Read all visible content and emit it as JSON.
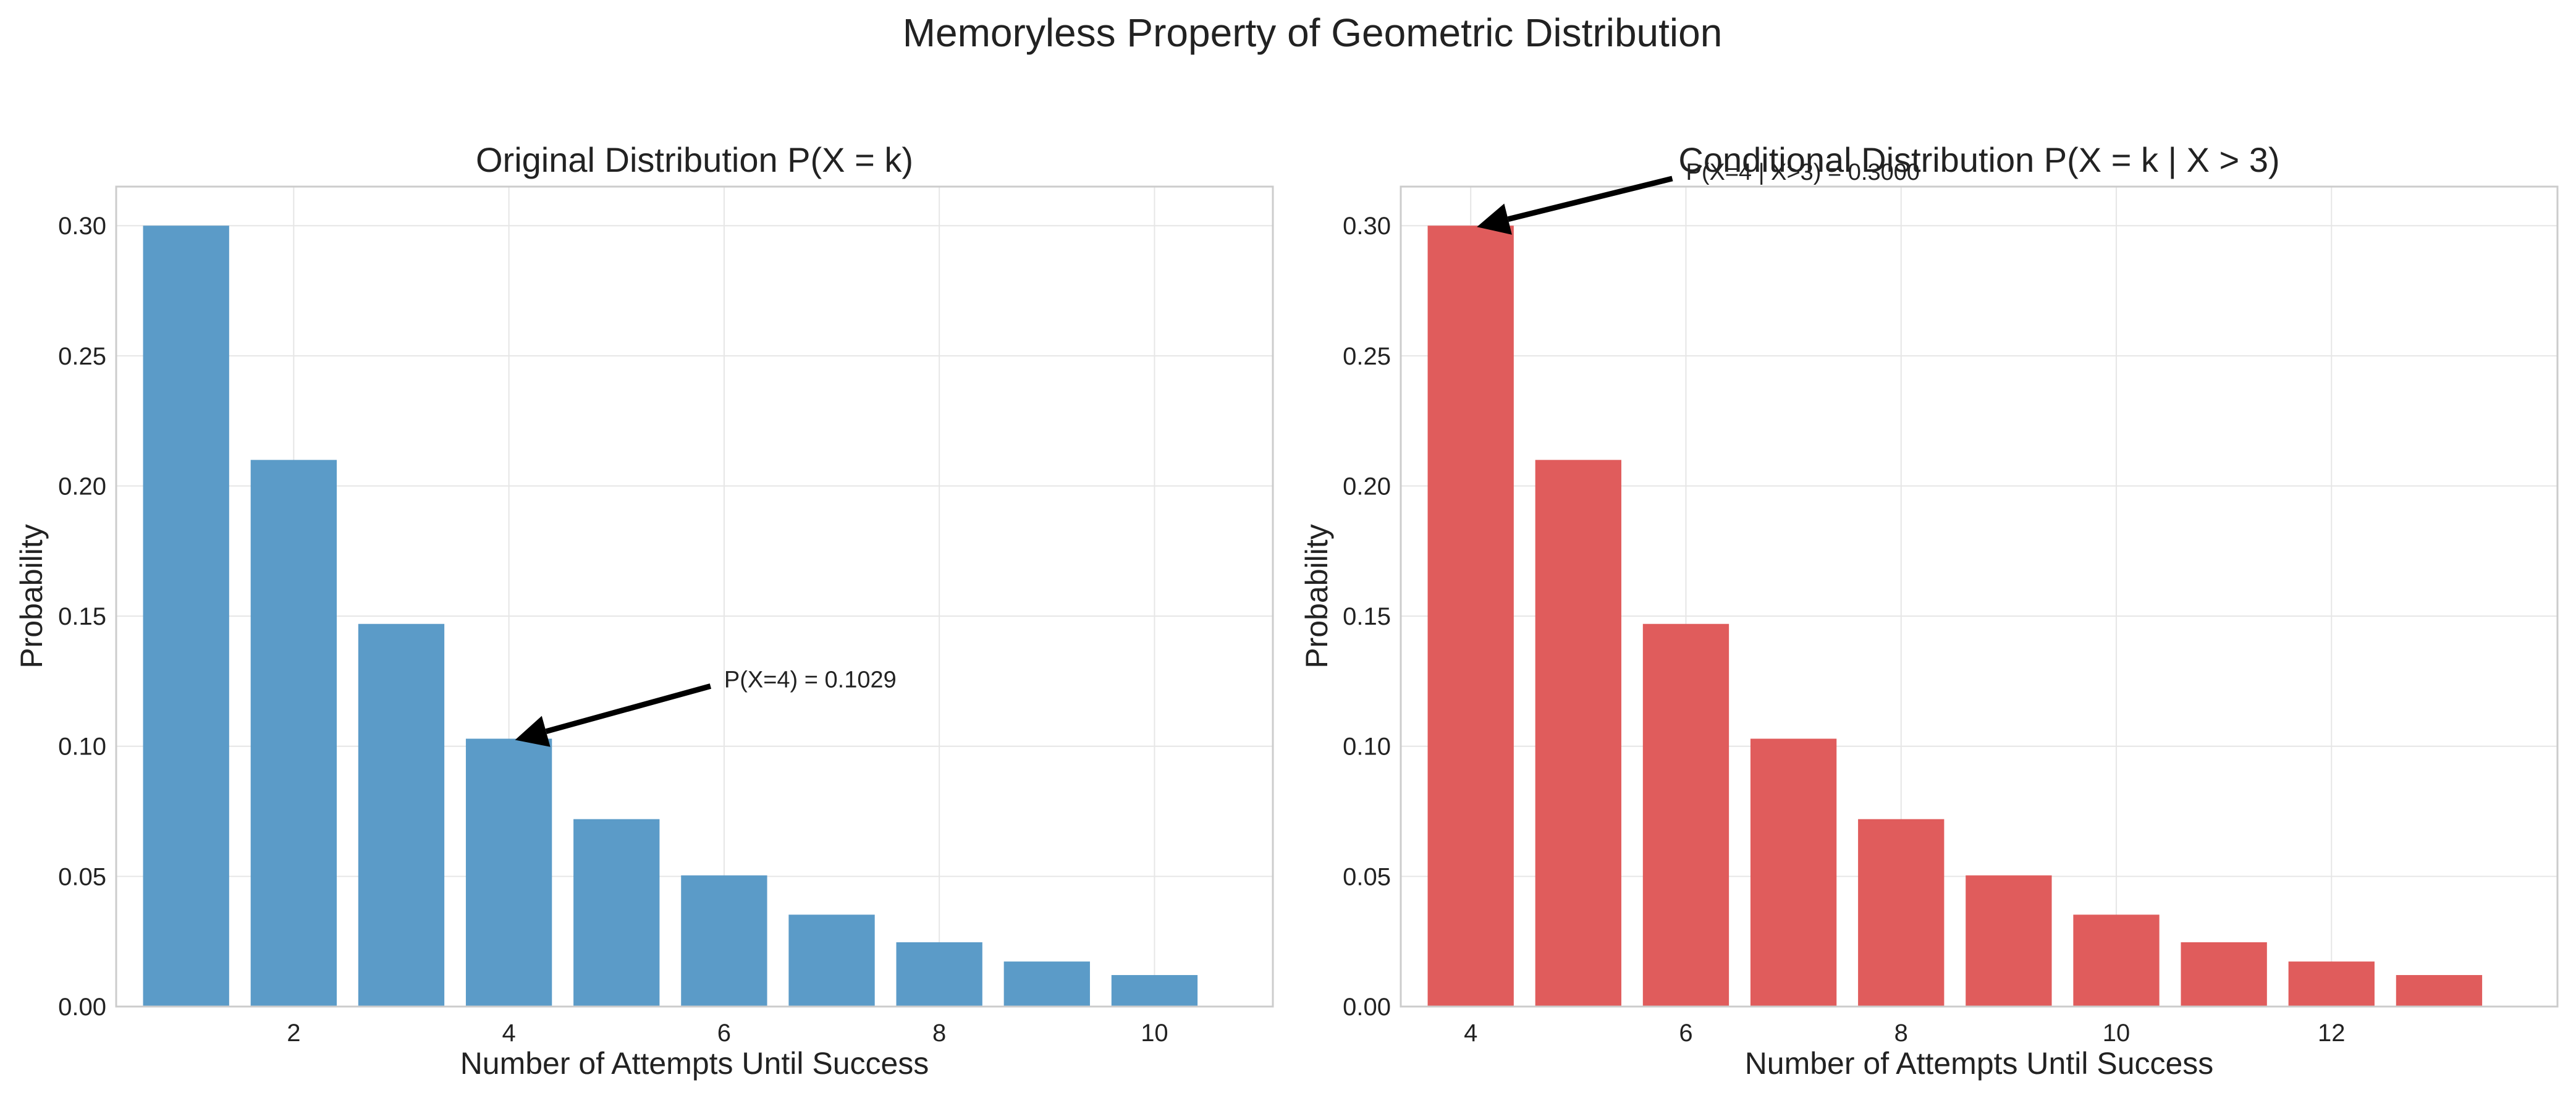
{
  "suptitle": "Memoryless Property of Geometric Distribution",
  "chart_data": [
    {
      "type": "bar",
      "title": "Original Distribution P(X = k)",
      "xlabel": "Number of Attempts Until Success",
      "ylabel": "Probability",
      "x": [
        1,
        2,
        3,
        4,
        5,
        6,
        7,
        8,
        9,
        10
      ],
      "values": [
        0.3,
        0.21,
        0.147,
        0.1029,
        0.072,
        0.0504,
        0.0353,
        0.0247,
        0.0173,
        0.0121
      ],
      "xlim": [
        0.35,
        11.1
      ],
      "ylim": [
        0,
        0.315
      ],
      "xticks": [
        2,
        4,
        6,
        8,
        10
      ],
      "yticks": [
        0.0,
        0.05,
        0.1,
        0.15,
        0.2,
        0.25,
        0.3
      ],
      "color": "#5b9bc8",
      "grid": true,
      "annotation": {
        "text": "P(X=4) = 0.1029",
        "arrow_to": [
          4,
          0.1029
        ],
        "text_at": [
          6,
          0.125
        ]
      }
    },
    {
      "type": "bar",
      "title": "Conditional Distribution P(X = k | X > 3)",
      "xlabel": "Number of Attempts Until Success",
      "ylabel": "Probability",
      "x": [
        4,
        5,
        6,
        7,
        8,
        9,
        10,
        11,
        12,
        13
      ],
      "values": [
        0.3,
        0.21,
        0.147,
        0.1029,
        0.072,
        0.0504,
        0.0353,
        0.0247,
        0.0173,
        0.0121
      ],
      "xlim": [
        3.35,
        14.1
      ],
      "ylim": [
        0,
        0.315
      ],
      "xticks": [
        4,
        6,
        8,
        10,
        12
      ],
      "yticks": [
        0.0,
        0.05,
        0.1,
        0.15,
        0.2,
        0.25,
        0.3
      ],
      "color": "#e05c5c",
      "grid": true,
      "annotation": {
        "text": "P(X=4 | X>3) = 0.3000",
        "arrow_to": [
          4,
          0.3
        ],
        "text_at": [
          6,
          0.32
        ]
      }
    }
  ]
}
